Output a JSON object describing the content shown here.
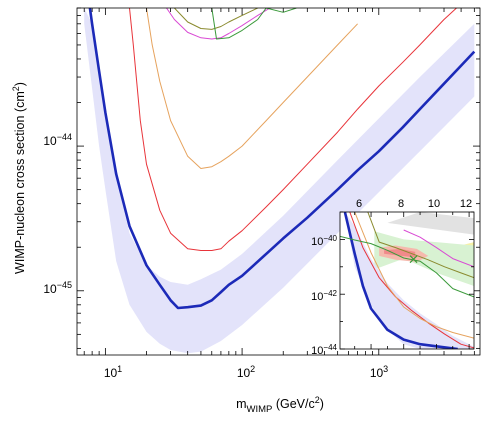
{
  "chart_data": [
    {
      "type": "line",
      "xlabel": "m_WIMP (GeV/c²)",
      "xlabel_parts": {
        "main": "m",
        "sub": "WIMP",
        "rest": " (GeV/c",
        "sup": "2",
        "close": ")"
      },
      "ylabel": "WIMP-nucleon cross section (cm²)",
      "ylabel_parts": {
        "main": "WIMP-nucleon cross section (cm",
        "sup": "2",
        "close": ")"
      },
      "x_scale": "log",
      "y_scale": "log",
      "xlim": [
        6.2,
        5500
      ],
      "ylim": [
        3.6e-46,
        9e-44
      ],
      "x_ticks": [
        {
          "value": 10,
          "base": "10",
          "exp": "1"
        },
        {
          "value": 100,
          "base": "10",
          "exp": "2"
        },
        {
          "value": 1000,
          "base": "10",
          "exp": "3"
        }
      ],
      "y_ticks": [
        {
          "value": 1e-45,
          "base": "10",
          "exp": "−45"
        },
        {
          "value": 1e-44,
          "base": "10",
          "exp": "−44"
        }
      ],
      "grid": false,
      "legend": "none",
      "band": {
        "color": "#e3e3fa",
        "x": [
          7,
          8,
          9,
          10,
          12,
          15,
          20,
          25,
          30,
          40,
          50,
          70,
          100,
          200,
          500,
          1000,
          2000,
          5000
        ],
        "y_low": [
          7e-44,
          2.5e-44,
          1e-44,
          5e-45,
          1.6e-45,
          8e-46,
          5.2e-46,
          4.3e-46,
          3.9e-46,
          3.7e-46,
          3.8e-46,
          4.5e-46,
          5.8e-46,
          1.05e-45,
          2.5e-45,
          4.8e-45,
          9.2e-45,
          2.2e-44
        ],
        "y_high": [
          9e-44,
          7e-44,
          3.2e-44,
          1.7e-44,
          6e-45,
          2.5e-45,
          1.5e-45,
          1.25e-45,
          1.15e-45,
          1.1e-45,
          1.2e-45,
          1.4e-45,
          1.8e-45,
          3.3e-45,
          8e-45,
          1.55e-44,
          3e-44,
          7e-44
        ]
      },
      "series": [
        {
          "color": "#1c2ab8",
          "width": 2.6,
          "x": [
            7.7,
            8,
            9,
            10,
            12,
            15,
            20,
            25,
            30,
            34,
            40,
            50,
            60,
            70,
            80,
            100,
            150,
            200,
            300,
            500,
            700,
            1000,
            1500,
            2000,
            3000,
            4000,
            5000
          ],
          "y": [
            9e-44,
            7e-44,
            3.3e-44,
            1.7e-44,
            6.4e-45,
            2.8e-45,
            1.5e-45,
            1.1e-45,
            8.6e-46,
            7.6e-46,
            7.7e-46,
            7.9e-46,
            8.6e-46,
            9.8e-46,
            1.1e-45,
            1.27e-45,
            1.8e-45,
            2.3e-45,
            3.2e-45,
            5e-45,
            6.8e-45,
            9.2e-45,
            1.35e-44,
            1.8e-44,
            2.7e-44,
            3.6e-44,
            4.5e-44
          ]
        },
        {
          "color": "#e8343a",
          "width": 1,
          "x": [
            15,
            16,
            18,
            20,
            25,
            30,
            40,
            50,
            60,
            70,
            80,
            100,
            150,
            200,
            300,
            500,
            700,
            1000,
            1500,
            2000,
            3000,
            3700
          ],
          "y": [
            9e-44,
            5e-44,
            1.5e-44,
            7.5e-45,
            3.6e-45,
            2.5e-45,
            1.95e-45,
            1.9e-45,
            1.9e-45,
            1.95e-45,
            2.2e-45,
            2.6e-45,
            3.8e-45,
            5e-45,
            7.5e-45,
            1.25e-44,
            1.8e-44,
            2.6e-44,
            3.8e-44,
            5e-44,
            7.5e-44,
            9e-44
          ]
        },
        {
          "color": "#e6a35e",
          "width": 1,
          "x": [
            20,
            22,
            25,
            30,
            40,
            50,
            60,
            70,
            80,
            100,
            150,
            200,
            300,
            500,
            700
          ],
          "y": [
            9e-44,
            5e-44,
            2.8e-44,
            1.5e-44,
            8.5e-45,
            7e-45,
            7.2e-45,
            7.8e-45,
            8.5e-45,
            1e-44,
            1.5e-44,
            2e-44,
            3e-44,
            5e-44,
            7e-44
          ]
        },
        {
          "color": "#d94ad4",
          "width": 1,
          "x": [
            28,
            32,
            40,
            50,
            60,
            70,
            80,
            100,
            130,
            160
          ],
          "y": [
            9e-44,
            7.5e-44,
            6.1e-44,
            5.6e-44,
            5.5e-44,
            5.6e-44,
            6e-44,
            6.8e-44,
            8e-44,
            9e-44
          ]
        },
        {
          "color": "#8a8a2e",
          "width": 1,
          "x": [
            32,
            40,
            50,
            60,
            70,
            80,
            100,
            130
          ],
          "y": [
            9e-44,
            7.2e-44,
            6.5e-44,
            6.4e-44,
            6.7e-44,
            7.2e-44,
            8e-44,
            9e-44
          ]
        },
        {
          "color": "#3b9a3b",
          "width": 1,
          "x": [
            60,
            65,
            80,
            100,
            130,
            150,
            200,
            250
          ],
          "y": [
            9e-44,
            5.5e-44,
            5.6e-44,
            6.3e-44,
            7.5e-44,
            9e-44,
            8.4e-44,
            9e-44
          ]
        }
      ]
    },
    {
      "type": "line",
      "x_scale": "linear",
      "y_scale": "log",
      "xlim": [
        4.1,
        12.3
      ],
      "ylim": [
        1e-44,
        1e-39
      ],
      "x_ticks": [
        6,
        8,
        10,
        12
      ],
      "y_ticks": [
        {
          "value": 1e-40,
          "base": "10",
          "exp": "−40"
        },
        {
          "value": 1e-42,
          "base": "10",
          "exp": "−42"
        },
        {
          "value": 1e-44,
          "base": "10",
          "exp": "−44"
        }
      ],
      "grid": false,
      "legend": "none",
      "regions": [
        {
          "color": "#e2e2e2",
          "x": [
            7,
            12.3,
            12.3,
            9
          ],
          "y": [
            4e-40,
            1.5e-40,
            6e-40,
            1e-39
          ]
        },
        {
          "color": "#f6f1a6",
          "x": [
            9.5,
            12.3,
            12.3,
            10.5
          ],
          "y": [
            3e-41,
            8e-41,
            2e-41,
            1e-41
          ]
        },
        {
          "color": "#d8f2d2",
          "x": [
            6.2,
            8,
            10,
            12.3,
            12.3,
            10,
            8,
            6.2
          ],
          "y": [
            2e-40,
            1e-40,
            8e-41,
            6e-41,
            2e-42,
            6e-42,
            2e-41,
            8e-42
          ]
        },
        {
          "color": "#f5b9ad",
          "x": [
            6.5,
            7.5,
            8.8,
            9.5,
            8.8,
            7.5,
            6.5
          ],
          "y": [
            5e-41,
            6e-41,
            4.5e-41,
            2.5e-41,
            1.5e-41,
            1.8e-41,
            2.5e-41
          ]
        },
        {
          "color": "#f08a8a",
          "x": [
            6.8,
            7.8,
            8.7,
            8.7,
            7.8,
            6.8
          ],
          "y": [
            4e-41,
            4.5e-41,
            3.5e-41,
            2.2e-41,
            2.5e-41,
            3e-41
          ]
        }
      ],
      "band": {
        "color": "#e3e3fa",
        "x": [
          4.4,
          5,
          6,
          7,
          8,
          9,
          10,
          11,
          12.3
        ],
        "y_low": [
          1e-39,
          1e-41,
          4e-43,
          5e-44,
          1.5e-44,
          1e-44,
          1e-44,
          1e-44,
          1e-44
        ],
        "y_high": [
          1e-39,
          3e-40,
          2e-41,
          2.5e-42,
          6e-43,
          2e-43,
          8e-44,
          3e-44,
          1.2e-44
        ]
      },
      "series": [
        {
          "color": "#1c2ab8",
          "width": 2.6,
          "x": [
            4.4,
            5,
            5.5,
            6,
            7,
            8,
            9,
            10,
            11,
            11.3
          ],
          "y": [
            1e-39,
            3e-41,
            2e-42,
            3e-43,
            5e-44,
            2.2e-44,
            1.5e-44,
            1.25e-44,
            1.05e-44,
            1e-44
          ]
        },
        {
          "color": "#e8343a",
          "width": 1,
          "x": [
            4.7,
            5.5,
            6.5,
            7.5,
            8.5,
            9.5,
            10.5,
            11.5,
            12.3
          ],
          "y": [
            1e-39,
            5e-41,
            4e-42,
            8e-43,
            2.5e-43,
            9e-44,
            3.5e-44,
            1.5e-44,
            1.1e-44
          ]
        },
        {
          "color": "#e6a35e",
          "width": 1,
          "x": [
            5,
            6,
            7,
            8,
            9,
            10,
            11,
            12.3
          ],
          "y": [
            1e-39,
            3.3e-41,
            2e-42,
            3.4e-43,
            1.3e-43,
            6.5e-44,
            4e-44,
            2.5e-44
          ]
        },
        {
          "color": "#8a8a2e",
          "width": 1,
          "x": [
            5.8,
            6.5,
            7.5,
            8.5,
            9.5,
            10.5,
            11.5,
            12.3
          ],
          "y": [
            1e-39,
            8e-41,
            5e-41,
            3e-41,
            1.8e-41,
            1e-41,
            6e-42,
            4e-42
          ]
        },
        {
          "color": "#3b9a3b",
          "width": 1,
          "x": [
            4.1,
            5,
            6,
            7,
            8,
            9,
            10,
            11,
            12.3
          ],
          "y": [
            1.3e-40,
            9.5e-41,
            7e-41,
            4e-41,
            2.1e-41,
            1.6e-41,
            6e-42,
            1.6e-42,
            8e-43
          ]
        },
        {
          "color": "#d94ad4",
          "width": 1,
          "x": [
            8,
            9,
            10,
            11,
            12.3
          ],
          "y": [
            2.2e-40,
            1.2e-40,
            5e-41,
            2e-41,
            1e-41
          ]
        }
      ],
      "markers": [
        {
          "symbol": "x",
          "color": "#3b9a3b",
          "x": 8.6,
          "y": 1.9e-41
        }
      ]
    }
  ]
}
